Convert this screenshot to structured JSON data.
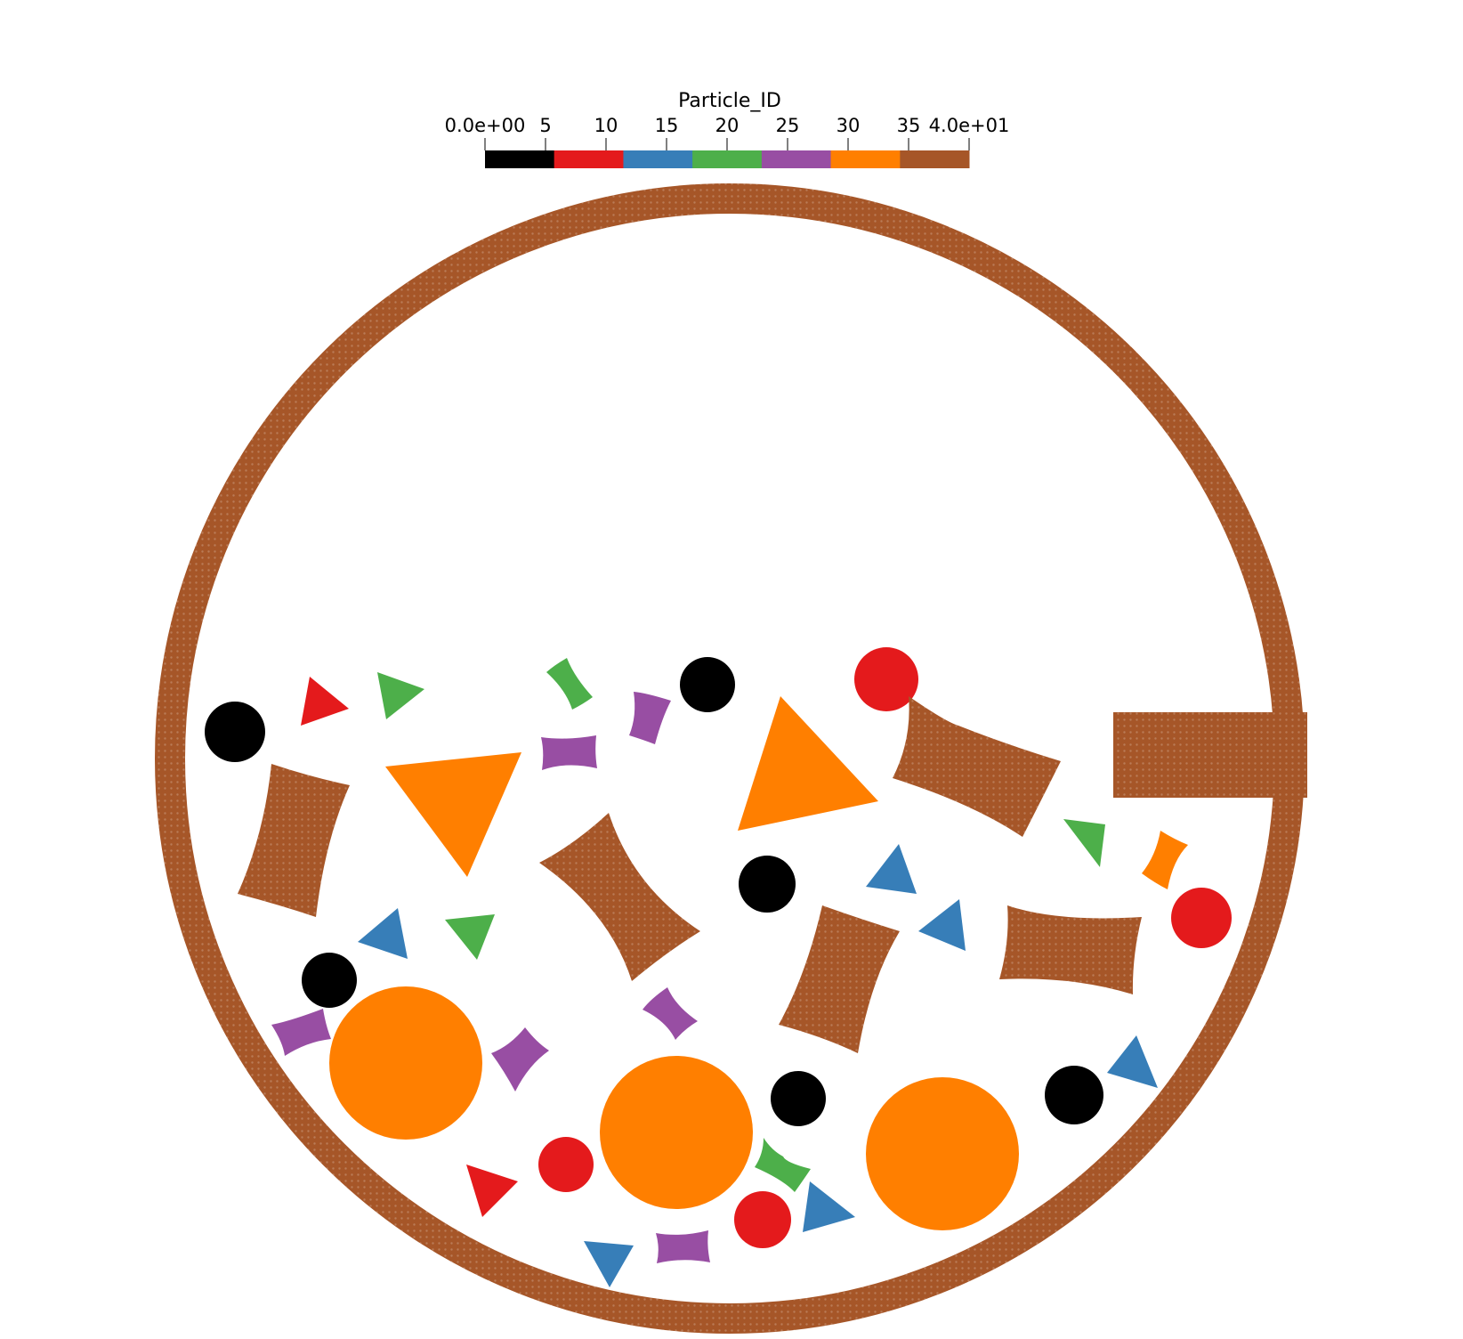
{
  "colorbar": {
    "title": "Particle_ID",
    "tick_labels": [
      "0.0e+00",
      "5",
      "10",
      "15",
      "20",
      "25",
      "30",
      "35",
      "4.0e+01"
    ],
    "tick_values": [
      0,
      5,
      10,
      15,
      20,
      25,
      30,
      35,
      40
    ],
    "range": [
      0,
      40
    ],
    "bands": [
      {
        "from": 0,
        "to": 5.71,
        "color": "#000000"
      },
      {
        "from": 5.71,
        "to": 11.43,
        "color": "#e41a1c"
      },
      {
        "from": 11.43,
        "to": 17.14,
        "color": "#377eb8"
      },
      {
        "from": 17.14,
        "to": 22.86,
        "color": "#4daf4a"
      },
      {
        "from": 22.86,
        "to": 28.57,
        "color": "#984ea3"
      },
      {
        "from": 28.57,
        "to": 34.29,
        "color": "#ff7f00"
      },
      {
        "from": 34.29,
        "to": 40,
        "color": "#a65628"
      }
    ]
  },
  "colors": {
    "black": "#000000",
    "red": "#e41a1c",
    "blue": "#377eb8",
    "green": "#4daf4a",
    "purple": "#984ea3",
    "orange": "#ff7f00",
    "brown": "#a65628"
  }
}
